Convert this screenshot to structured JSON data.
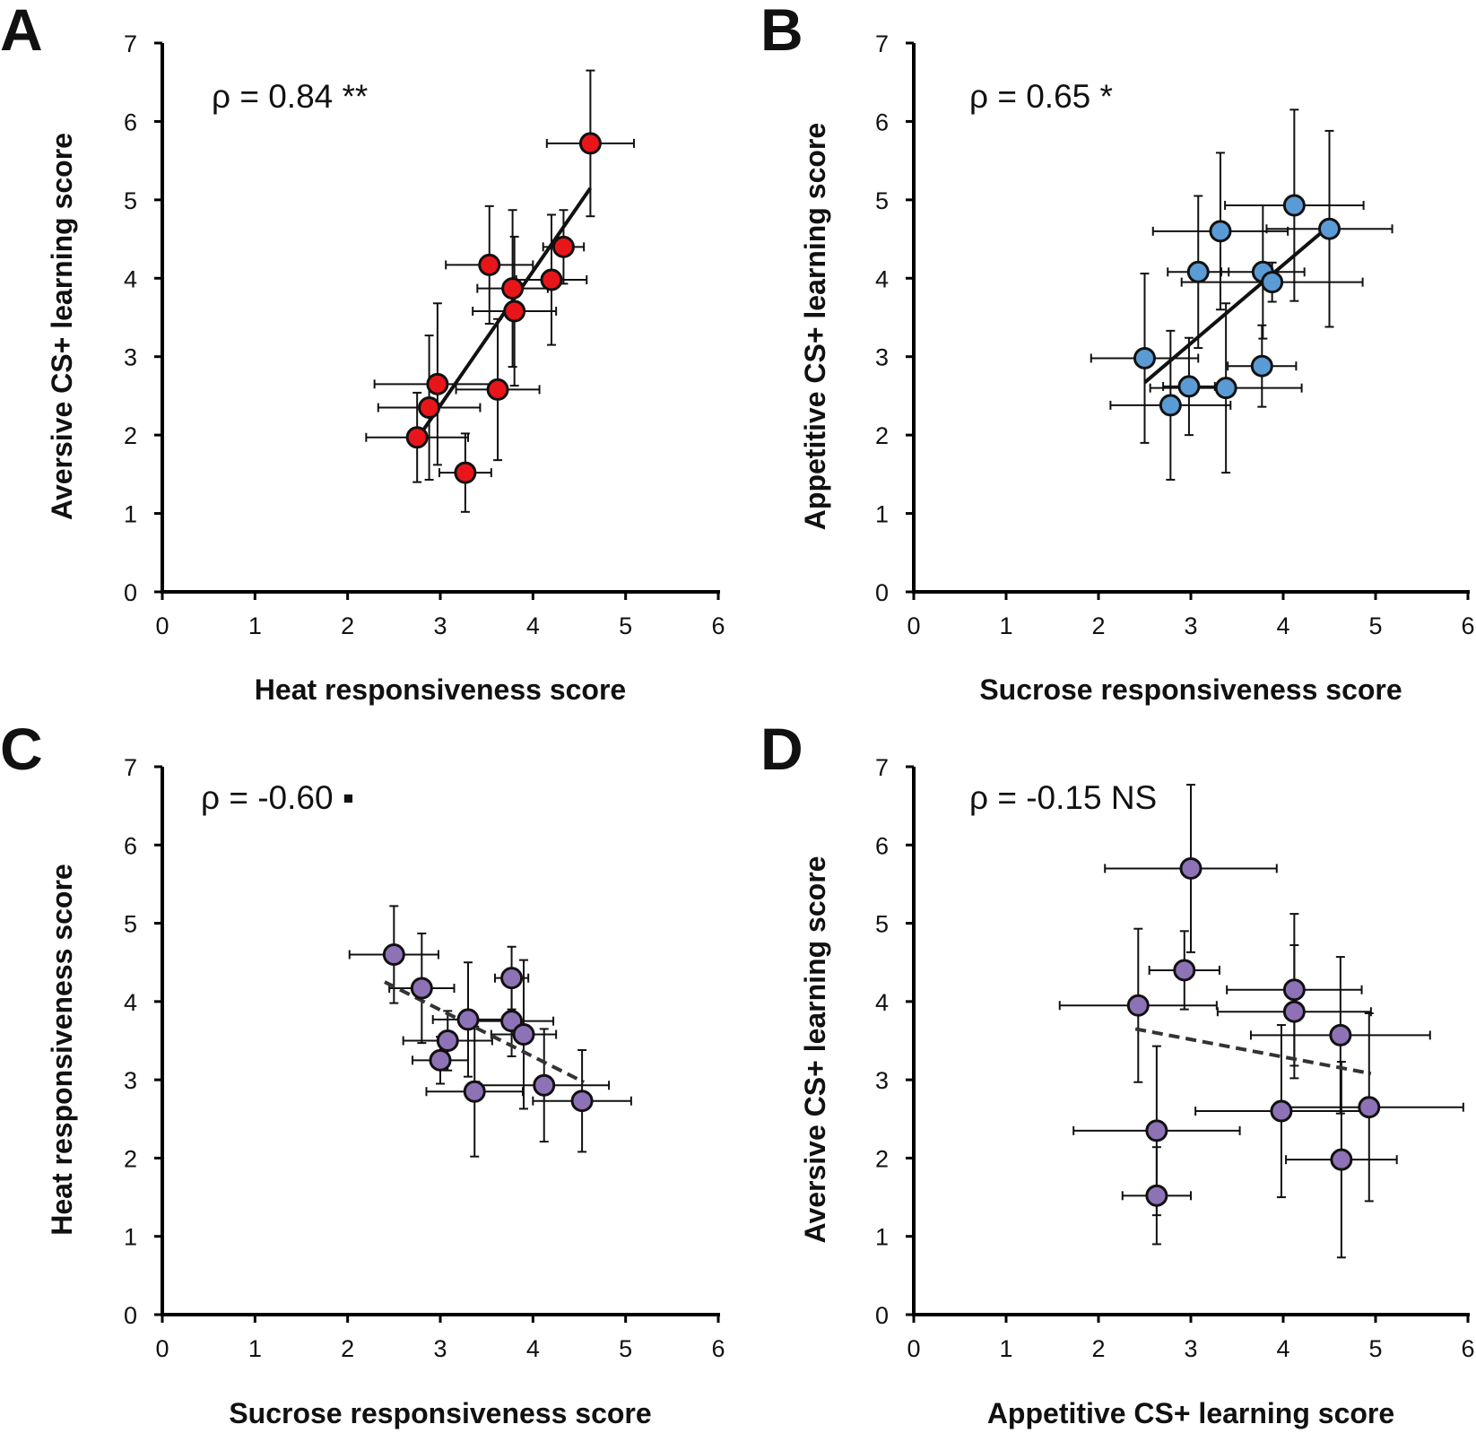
{
  "chart_data": [
    {
      "panel": "A",
      "type": "scatter",
      "title": "",
      "xlabel": "Heat responsiveness score",
      "ylabel": "Aversive CS+ learning score",
      "xlim": [
        0,
        6
      ],
      "ylim": [
        0,
        7
      ],
      "xticks": [
        "0",
        "1",
        "2",
        "3",
        "4",
        "5",
        "6"
      ],
      "yticks": [
        "0",
        "1",
        "2",
        "3",
        "4",
        "5",
        "6",
        "7"
      ],
      "annotation": "ρ = 0.84 **",
      "marker_color": "#e8161b",
      "fit_line": {
        "style": "solid",
        "x": [
          2.75,
          4.62
        ],
        "y": [
          1.95,
          5.15
        ]
      },
      "points": [
        {
          "x": 4.62,
          "y": 5.72,
          "xerr": 0.47,
          "yerr": 0.93
        },
        {
          "x": 4.33,
          "y": 4.4,
          "xerr": 0.22,
          "yerr": 0.47
        },
        {
          "x": 3.53,
          "y": 4.17,
          "xerr": 0.47,
          "yerr": 0.75
        },
        {
          "x": 4.2,
          "y": 3.98,
          "xerr": 0.38,
          "yerr": 0.83
        },
        {
          "x": 3.78,
          "y": 3.87,
          "xerr": 0.38,
          "yerr": 1.0
        },
        {
          "x": 3.8,
          "y": 3.58,
          "xerr": 0.45,
          "yerr": 0.95
        },
        {
          "x": 2.97,
          "y": 2.65,
          "xerr": 0.68,
          "yerr": 1.03
        },
        {
          "x": 3.62,
          "y": 2.58,
          "xerr": 0.45,
          "yerr": 0.9
        },
        {
          "x": 2.88,
          "y": 2.35,
          "xerr": 0.55,
          "yerr": 0.92
        },
        {
          "x": 2.75,
          "y": 1.97,
          "xerr": 0.55,
          "yerr": 0.57
        },
        {
          "x": 3.27,
          "y": 1.52,
          "xerr": 0.28,
          "yerr": 0.5
        }
      ]
    },
    {
      "panel": "B",
      "type": "scatter",
      "title": "",
      "xlabel": "Sucrose responsiveness score",
      "ylabel": "Appetitive CS+ learning score",
      "xlim": [
        0,
        6
      ],
      "ylim": [
        0,
        7
      ],
      "xticks": [
        "0",
        "1",
        "2",
        "3",
        "4",
        "5",
        "6"
      ],
      "yticks": [
        "0",
        "1",
        "2",
        "3",
        "4",
        "5",
        "6",
        "7"
      ],
      "annotation": "ρ = 0.65 *",
      "marker_color": "#5b9bd5",
      "fit_line": {
        "style": "solid",
        "x": [
          2.5,
          4.5
        ],
        "y": [
          2.67,
          4.67
        ]
      },
      "points": [
        {
          "x": 4.12,
          "y": 4.93,
          "xerr": 0.75,
          "yerr": 1.22
        },
        {
          "x": 4.5,
          "y": 4.63,
          "xerr": 0.68,
          "yerr": 1.25
        },
        {
          "x": 3.32,
          "y": 4.6,
          "xerr": 0.73,
          "yerr": 1.0
        },
        {
          "x": 3.08,
          "y": 4.08,
          "xerr": 0.33,
          "yerr": 0.97
        },
        {
          "x": 3.78,
          "y": 4.08,
          "xerr": 0.45,
          "yerr": 0.85
        },
        {
          "x": 3.88,
          "y": 3.95,
          "xerr": 0.98,
          "yerr": 0.25
        },
        {
          "x": 2.5,
          "y": 2.98,
          "xerr": 0.58,
          "yerr": 1.08
        },
        {
          "x": 3.77,
          "y": 2.88,
          "xerr": 0.37,
          "yerr": 0.52
        },
        {
          "x": 2.98,
          "y": 2.62,
          "xerr": 0.28,
          "yerr": 0.62
        },
        {
          "x": 3.38,
          "y": 2.6,
          "xerr": 0.82,
          "yerr": 1.08
        },
        {
          "x": 2.78,
          "y": 2.38,
          "xerr": 0.65,
          "yerr": 0.95
        }
      ]
    },
    {
      "panel": "C",
      "type": "scatter",
      "title": "",
      "xlabel": "Sucrose responsiveness score",
      "ylabel": "Heat responsiveness score",
      "xlim": [
        0,
        6
      ],
      "ylim": [
        0,
        7
      ],
      "xticks": [
        "0",
        "1",
        "2",
        "3",
        "4",
        "5",
        "6"
      ],
      "yticks": [
        "0",
        "1",
        "2",
        "3",
        "4",
        "5",
        "6",
        "7"
      ],
      "annotation": "ρ = -0.60 ▪",
      "marker_color": "#8e72b6",
      "fit_line": {
        "style": "dashed",
        "x": [
          2.4,
          4.55
        ],
        "y": [
          4.25,
          2.97
        ]
      },
      "points": [
        {
          "x": 2.5,
          "y": 4.6,
          "xerr": 0.48,
          "yerr": 0.62
        },
        {
          "x": 2.8,
          "y": 4.17,
          "xerr": 0.35,
          "yerr": 0.7
        },
        {
          "x": 3.77,
          "y": 4.3,
          "xerr": 0.18,
          "yerr": 0.4
        },
        {
          "x": 3.3,
          "y": 3.77,
          "xerr": 0.38,
          "yerr": 0.73
        },
        {
          "x": 3.77,
          "y": 3.75,
          "xerr": 0.45,
          "yerr": 0.45
        },
        {
          "x": 3.08,
          "y": 3.5,
          "xerr": 0.48,
          "yerr": 0.38
        },
        {
          "x": 3.9,
          "y": 3.58,
          "xerr": 0.35,
          "yerr": 0.95
        },
        {
          "x": 3.0,
          "y": 3.25,
          "xerr": 0.3,
          "yerr": 0.3
        },
        {
          "x": 3.37,
          "y": 2.85,
          "xerr": 0.52,
          "yerr": 0.83
        },
        {
          "x": 4.12,
          "y": 2.93,
          "xerr": 0.7,
          "yerr": 0.72
        },
        {
          "x": 4.53,
          "y": 2.73,
          "xerr": 0.53,
          "yerr": 0.65
        }
      ]
    },
    {
      "panel": "D",
      "type": "scatter",
      "title": "",
      "xlabel": "Appetitive CS+ learning score",
      "ylabel": "Aversive CS+ learning score",
      "xlim": [
        0,
        6
      ],
      "ylim": [
        0,
        7
      ],
      "xticks": [
        "0",
        "1",
        "2",
        "3",
        "4",
        "5",
        "6"
      ],
      "yticks": [
        "0",
        "1",
        "2",
        "3",
        "4",
        "5",
        "6",
        "7"
      ],
      "annotation": "ρ = -0.15 NS",
      "marker_color": "#8e72b6",
      "fit_line": {
        "style": "dashed",
        "x": [
          2.4,
          4.95
        ],
        "y": [
          3.65,
          3.08
        ]
      },
      "points": [
        {
          "x": 3.0,
          "y": 5.7,
          "xerr": 0.93,
          "yerr": 1.07
        },
        {
          "x": 2.93,
          "y": 4.4,
          "xerr": 0.38,
          "yerr": 0.5
        },
        {
          "x": 4.12,
          "y": 4.15,
          "xerr": 0.73,
          "yerr": 0.97
        },
        {
          "x": 2.43,
          "y": 3.95,
          "xerr": 0.85,
          "yerr": 0.98
        },
        {
          "x": 4.12,
          "y": 3.87,
          "xerr": 0.83,
          "yerr": 0.85
        },
        {
          "x": 4.62,
          "y": 3.57,
          "xerr": 0.97,
          "yerr": 1.0
        },
        {
          "x": 4.93,
          "y": 2.65,
          "xerr": 1.02,
          "yerr": 1.2
        },
        {
          "x": 3.98,
          "y": 2.6,
          "xerr": 0.93,
          "yerr": 1.1
        },
        {
          "x": 2.63,
          "y": 2.35,
          "xerr": 0.9,
          "yerr": 1.08
        },
        {
          "x": 4.63,
          "y": 1.98,
          "xerr": 0.6,
          "yerr": 1.25
        },
        {
          "x": 2.63,
          "y": 1.52,
          "xerr": 0.37,
          "yerr": 0.62
        }
      ]
    }
  ]
}
